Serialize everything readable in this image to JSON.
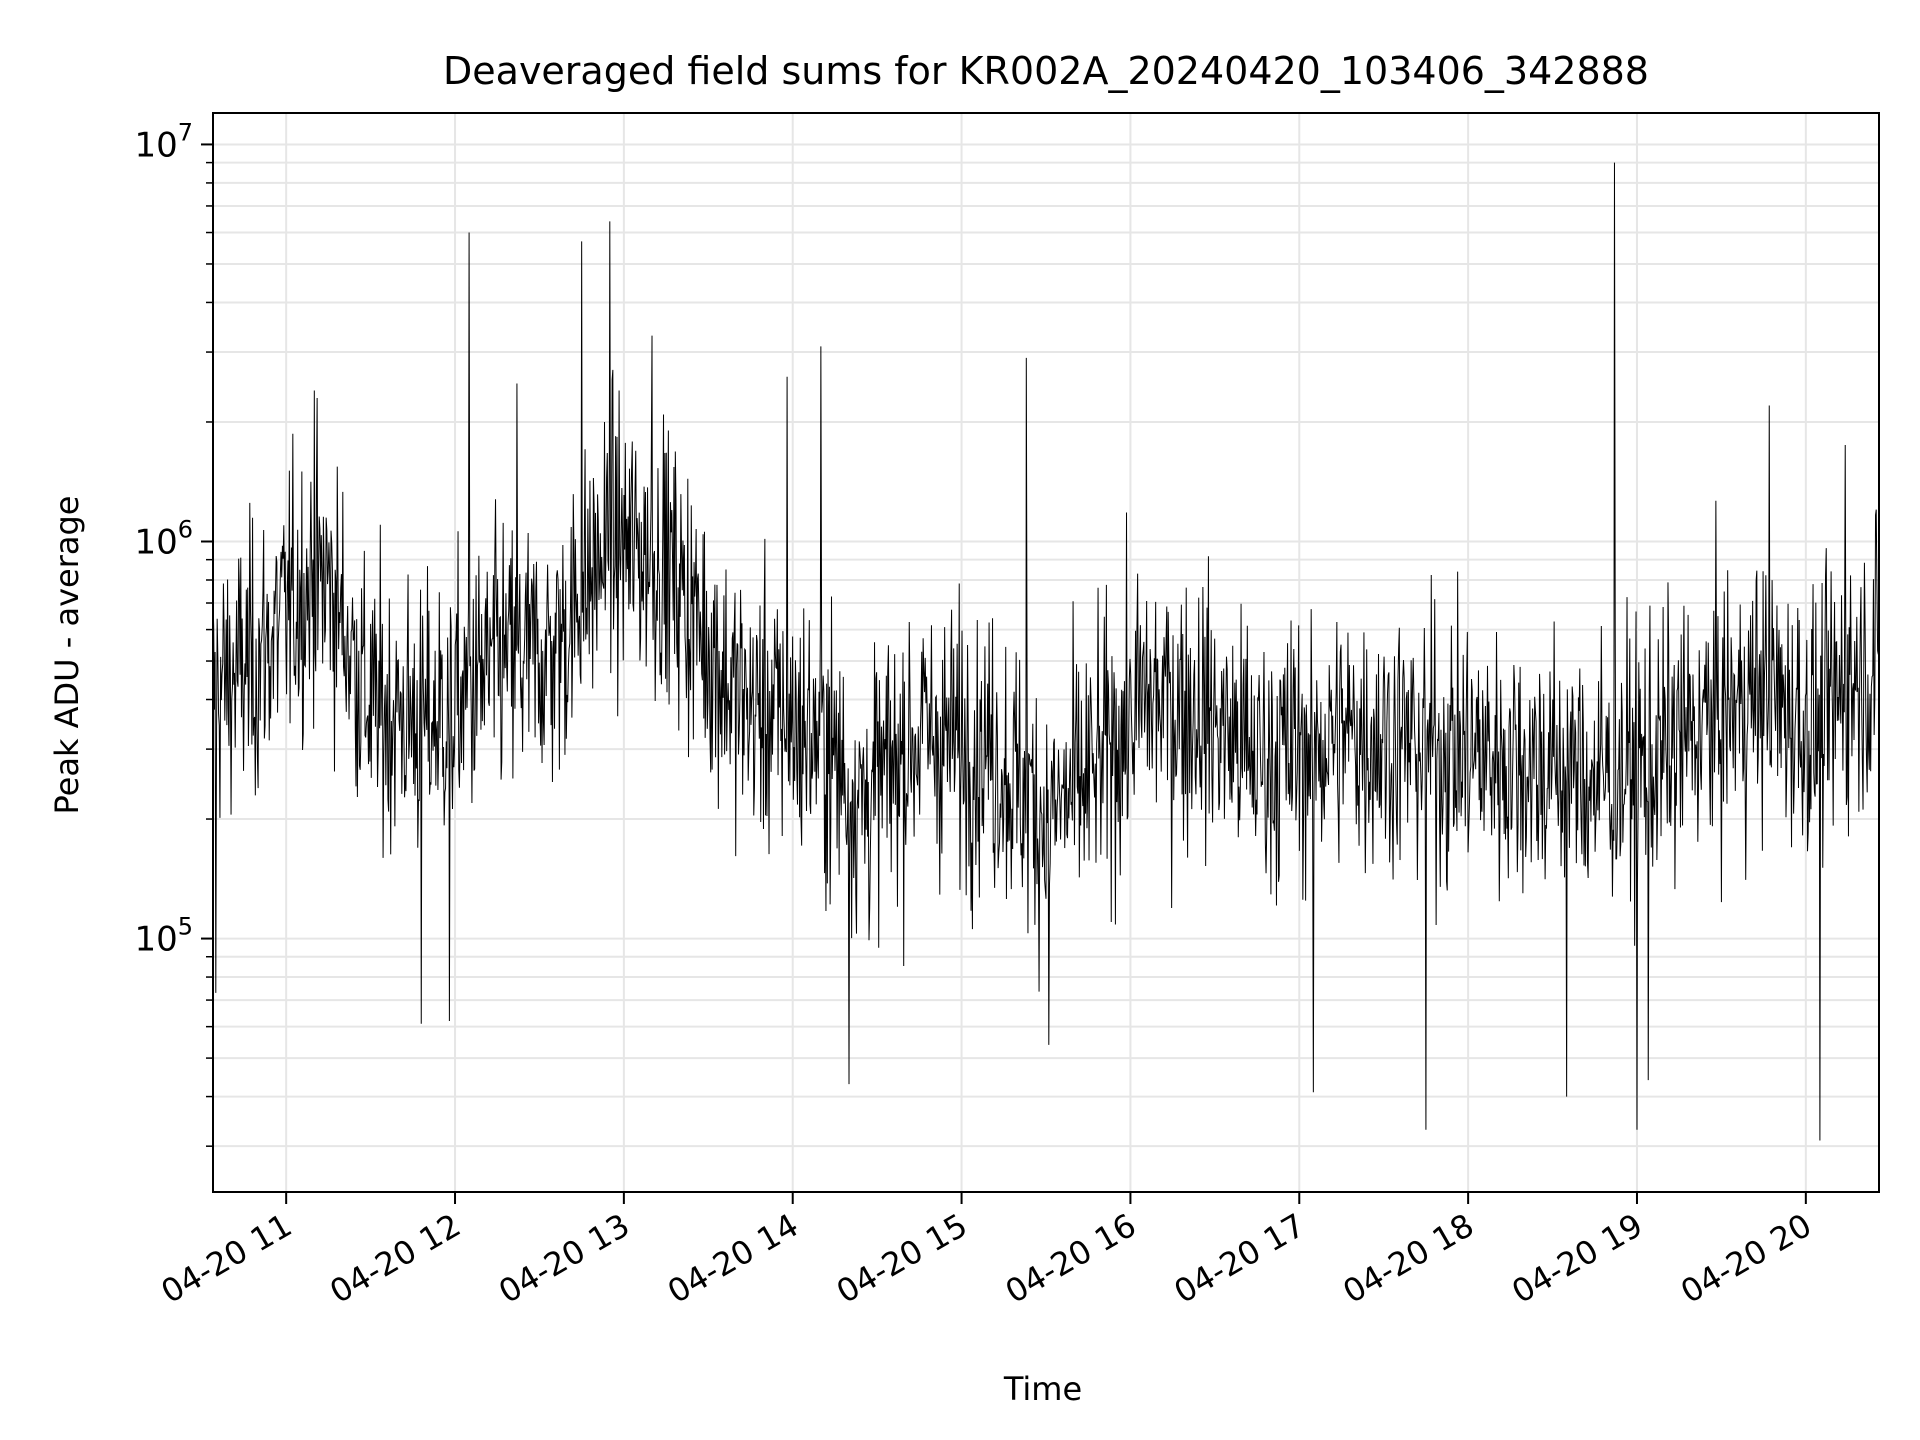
{
  "chart_data": {
    "type": "line",
    "title": "Deaveraged field sums for KR002A_20240420_103406_342888",
    "xlabel": "Time",
    "ylabel": "Peak ADU - average",
    "x_start": "2024-04-20T10:34",
    "x_end": "2024-04-20T20:26",
    "xlim": [
      "2024-04-20T10:34",
      "2024-04-20T20:26"
    ],
    "xticks": [
      "04-20 11",
      "04-20 12",
      "04-20 13",
      "04-20 14",
      "04-20 15",
      "04-20 16",
      "04-20 17",
      "04-20 18",
      "04-20 19",
      "04-20 20"
    ],
    "yscale": "log",
    "ylim": [
      23000,
      12000000
    ],
    "yticks": [
      {
        "base": "10",
        "exp": "5",
        "value": 100000
      },
      {
        "base": "10",
        "exp": "6",
        "value": 1000000
      },
      {
        "base": "10",
        "exp": "7",
        "value": 10000000
      }
    ],
    "grid": true,
    "legend": "none",
    "line_color": "#000000",
    "series": [
      {
        "trend": [
          [
            "2024-04-20T10:34",
            420000
          ],
          [
            "2024-04-20T10:50",
            500000
          ],
          [
            "2024-04-20T11:05",
            750000
          ],
          [
            "2024-04-20T11:15",
            800000
          ],
          [
            "2024-04-20T11:30",
            380000
          ],
          [
            "2024-04-20T11:50",
            350000
          ],
          [
            "2024-04-20T12:00",
            380000
          ],
          [
            "2024-04-20T12:15",
            500000
          ],
          [
            "2024-04-20T12:35",
            520000
          ],
          [
            "2024-04-20T12:55",
            1000000
          ],
          [
            "2024-04-20T13:15",
            900000
          ],
          [
            "2024-04-20T13:40",
            400000
          ],
          [
            "2024-04-20T14:10",
            320000
          ],
          [
            "2024-04-20T14:25",
            220000
          ],
          [
            "2024-04-20T14:45",
            330000
          ],
          [
            "2024-04-20T15:10",
            300000
          ],
          [
            "2024-04-20T15:30",
            200000
          ],
          [
            "2024-04-20T15:45",
            250000
          ],
          [
            "2024-04-20T16:05",
            400000
          ],
          [
            "2024-04-20T16:25",
            380000
          ],
          [
            "2024-04-20T16:45",
            280000
          ],
          [
            "2024-04-20T17:20",
            330000
          ],
          [
            "2024-04-20T17:50",
            300000
          ],
          [
            "2024-04-20T18:20",
            280000
          ],
          [
            "2024-04-20T18:45",
            250000
          ],
          [
            "2024-04-20T19:05",
            280000
          ],
          [
            "2024-04-20T19:25",
            350000
          ],
          [
            "2024-04-20T19:45",
            420000
          ],
          [
            "2024-04-20T20:05",
            330000
          ],
          [
            "2024-04-20T20:15",
            450000
          ],
          [
            "2024-04-20T20:26",
            500000
          ]
        ],
        "spikes": [
          [
            "2024-04-20T11:10",
            2400000
          ],
          [
            "2024-04-20T12:05",
            6000000
          ],
          [
            "2024-04-20T12:22",
            2500000
          ],
          [
            "2024-04-20T12:45",
            5700000
          ],
          [
            "2024-04-20T12:55",
            6400000
          ],
          [
            "2024-04-20T13:10",
            3300000
          ],
          [
            "2024-04-20T13:58",
            2600000
          ],
          [
            "2024-04-20T14:10",
            3100000
          ],
          [
            "2024-04-20T15:23",
            2900000
          ],
          [
            "2024-04-20T18:52",
            9000000
          ],
          [
            "2024-04-20T19:47",
            2200000
          ],
          [
            "2024-04-20T20:14",
            1750000
          ],
          [
            "2024-04-20T10:35",
            73000
          ],
          [
            "2024-04-20T11:48",
            61000
          ],
          [
            "2024-04-20T11:58",
            62000
          ],
          [
            "2024-04-20T14:20",
            43000
          ],
          [
            "2024-04-20T15:31",
            54000
          ],
          [
            "2024-04-20T17:05",
            41000
          ],
          [
            "2024-04-20T17:45",
            33000
          ],
          [
            "2024-04-20T18:35",
            40000
          ],
          [
            "2024-04-20T19:00",
            33000
          ],
          [
            "2024-04-20T19:04",
            44000
          ],
          [
            "2024-04-20T20:05",
            31000
          ]
        ]
      }
    ]
  }
}
